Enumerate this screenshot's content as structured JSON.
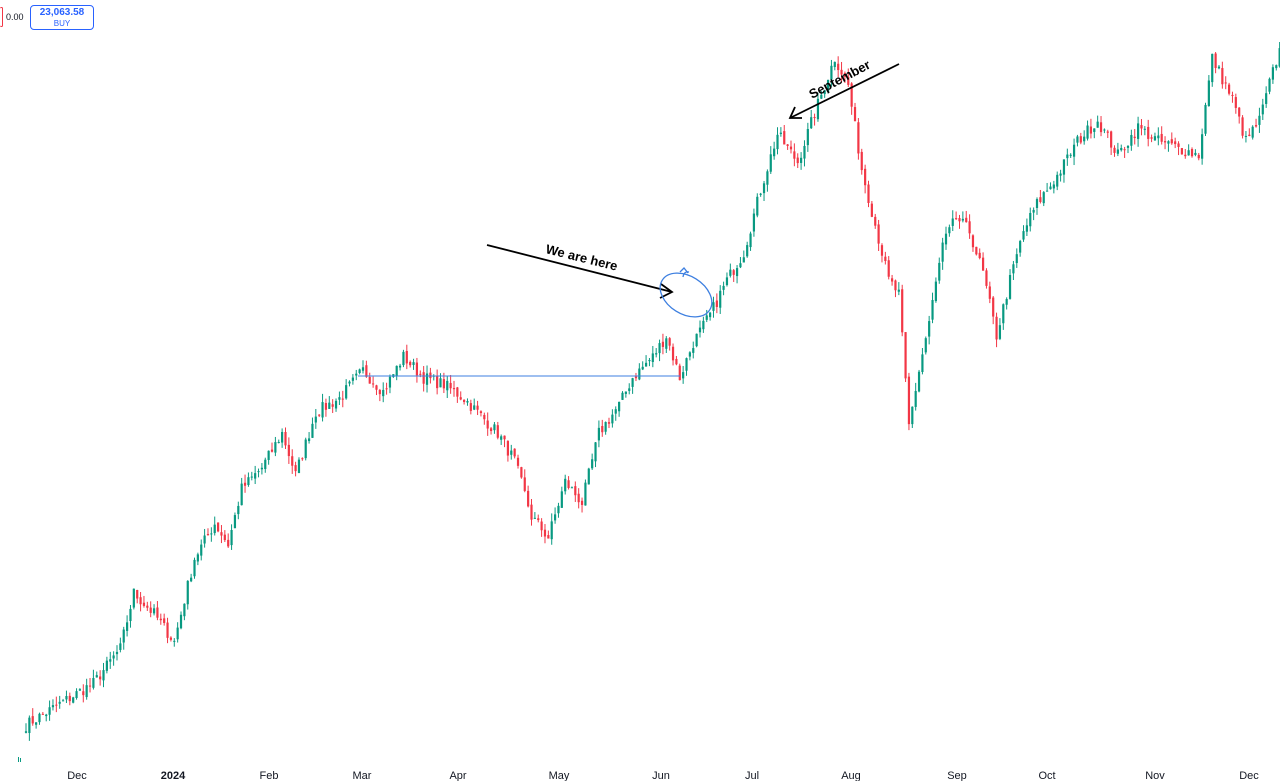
{
  "header": {
    "left_value": "0.00",
    "order_price": "23,063.58",
    "order_side": "BUY"
  },
  "colors": {
    "up": "#089981",
    "down": "#f23645",
    "annotation_blue": "#3d7fe0",
    "annotation_black": "#000000"
  },
  "chart_data": {
    "type": "candlestick",
    "period": "daily",
    "price_axis": "hidden",
    "x_tick_labels": [
      {
        "label": "Dec",
        "bold": false
      },
      {
        "label": "2024",
        "bold": true
      },
      {
        "label": "Feb",
        "bold": false
      },
      {
        "label": "Mar",
        "bold": false
      },
      {
        "label": "Apr",
        "bold": false
      },
      {
        "label": "May",
        "bold": false
      },
      {
        "label": "Jun",
        "bold": false
      },
      {
        "label": "Jul",
        "bold": false
      },
      {
        "label": "Aug",
        "bold": false
      },
      {
        "label": "Sep",
        "bold": false
      },
      {
        "label": "Oct",
        "bold": false
      },
      {
        "label": "Nov",
        "bold": false
      },
      {
        "label": "Dec",
        "bold": false
      }
    ],
    "trend_path": [
      [
        0,
        0.0
      ],
      [
        10,
        0.03
      ],
      [
        20,
        0.06
      ],
      [
        28,
        0.11
      ],
      [
        32,
        0.19
      ],
      [
        38,
        0.16
      ],
      [
        44,
        0.12
      ],
      [
        50,
        0.24
      ],
      [
        56,
        0.29
      ],
      [
        60,
        0.26
      ],
      [
        64,
        0.34
      ],
      [
        70,
        0.37
      ],
      [
        76,
        0.42
      ],
      [
        80,
        0.36
      ],
      [
        86,
        0.45
      ],
      [
        93,
        0.47
      ],
      [
        100,
        0.51
      ],
      [
        106,
        0.48
      ],
      [
        112,
        0.53
      ],
      [
        118,
        0.5
      ],
      [
        124,
        0.49
      ],
      [
        130,
        0.47
      ],
      [
        136,
        0.44
      ],
      [
        140,
        0.42
      ],
      [
        145,
        0.38
      ],
      [
        150,
        0.3
      ],
      [
        155,
        0.27
      ],
      [
        160,
        0.35
      ],
      [
        165,
        0.32
      ],
      [
        170,
        0.42
      ],
      [
        176,
        0.46
      ],
      [
        180,
        0.5
      ],
      [
        186,
        0.53
      ],
      [
        190,
        0.56
      ],
      [
        194,
        0.5
      ],
      [
        198,
        0.55
      ],
      [
        203,
        0.59
      ],
      [
        208,
        0.64
      ],
      [
        213,
        0.68
      ],
      [
        218,
        0.77
      ],
      [
        223,
        0.85
      ],
      [
        229,
        0.81
      ],
      [
        234,
        0.88
      ],
      [
        240,
        0.96
      ],
      [
        244,
        0.92
      ],
      [
        248,
        0.8
      ],
      [
        252,
        0.72
      ],
      [
        256,
        0.64
      ],
      [
        259,
        0.62
      ],
      [
        262,
        0.43
      ],
      [
        265,
        0.51
      ],
      [
        268,
        0.58
      ],
      [
        272,
        0.69
      ],
      [
        276,
        0.73
      ],
      [
        280,
        0.71
      ],
      [
        284,
        0.65
      ],
      [
        288,
        0.56
      ],
      [
        292,
        0.64
      ],
      [
        296,
        0.71
      ],
      [
        300,
        0.75
      ],
      [
        306,
        0.79
      ],
      [
        312,
        0.84
      ],
      [
        318,
        0.87
      ],
      [
        324,
        0.82
      ],
      [
        330,
        0.86
      ],
      [
        336,
        0.84
      ],
      [
        342,
        0.83
      ],
      [
        348,
        0.82
      ],
      [
        352,
        0.96
      ],
      [
        358,
        0.9
      ],
      [
        362,
        0.84
      ],
      [
        366,
        0.87
      ],
      [
        370,
        0.94
      ],
      [
        374,
        1.0
      ]
    ],
    "annotations": [
      {
        "type": "horizontal_line",
        "color": "#3d7fe0"
      },
      {
        "type": "arrow",
        "label": "We are here",
        "color": "#000000"
      },
      {
        "type": "ellipse",
        "color": "#3d7fe0"
      },
      {
        "type": "curved_arrow",
        "color": "#3d7fe0"
      },
      {
        "type": "arrow",
        "label": "September",
        "color": "#000000"
      }
    ]
  }
}
